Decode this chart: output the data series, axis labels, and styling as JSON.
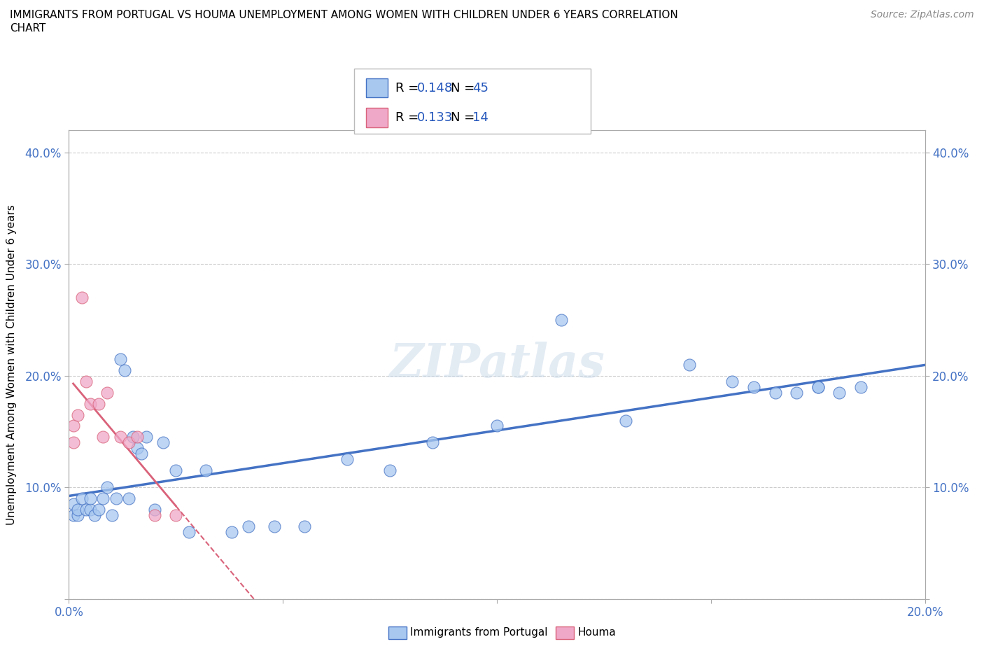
{
  "title_line1": "IMMIGRANTS FROM PORTUGAL VS HOUMA UNEMPLOYMENT AMONG WOMEN WITH CHILDREN UNDER 6 YEARS CORRELATION",
  "title_line2": "CHART",
  "source": "Source: ZipAtlas.com",
  "ylabel": "Unemployment Among Women with Children Under 6 years",
  "xlim": [
    0.0,
    0.2
  ],
  "ylim": [
    0.0,
    0.42
  ],
  "xticks": [
    0.0,
    0.05,
    0.1,
    0.15,
    0.2
  ],
  "yticks": [
    0.0,
    0.1,
    0.2,
    0.3,
    0.4
  ],
  "xtick_labels": [
    "0.0%",
    "",
    "",
    "",
    "20.0%"
  ],
  "ytick_labels": [
    "",
    "10.0%",
    "20.0%",
    "30.0%",
    "40.0%"
  ],
  "blue_color": "#a8c8f0",
  "pink_color": "#f0a8c8",
  "blue_line_color": "#4472c4",
  "pink_line_color": "#d9627a",
  "tick_color": "#4472c4",
  "watermark": "ZIPatlas",
  "blue_scatter_x": [
    0.001,
    0.001,
    0.002,
    0.002,
    0.003,
    0.004,
    0.005,
    0.005,
    0.006,
    0.007,
    0.008,
    0.009,
    0.01,
    0.011,
    0.012,
    0.013,
    0.014,
    0.015,
    0.016,
    0.017,
    0.018,
    0.02,
    0.022,
    0.025,
    0.028,
    0.032,
    0.038,
    0.042,
    0.048,
    0.055,
    0.065,
    0.075,
    0.085,
    0.1,
    0.115,
    0.13,
    0.145,
    0.155,
    0.16,
    0.165,
    0.17,
    0.175,
    0.175,
    0.18,
    0.185
  ],
  "blue_scatter_y": [
    0.075,
    0.085,
    0.075,
    0.08,
    0.09,
    0.08,
    0.08,
    0.09,
    0.075,
    0.08,
    0.09,
    0.1,
    0.075,
    0.09,
    0.215,
    0.205,
    0.09,
    0.145,
    0.135,
    0.13,
    0.145,
    0.08,
    0.14,
    0.115,
    0.06,
    0.115,
    0.06,
    0.065,
    0.065,
    0.065,
    0.125,
    0.115,
    0.14,
    0.155,
    0.25,
    0.16,
    0.21,
    0.195,
    0.19,
    0.185,
    0.185,
    0.19,
    0.19,
    0.185,
    0.19
  ],
  "pink_scatter_x": [
    0.001,
    0.001,
    0.002,
    0.003,
    0.004,
    0.005,
    0.007,
    0.008,
    0.009,
    0.012,
    0.014,
    0.016,
    0.02,
    0.025
  ],
  "pink_scatter_y": [
    0.14,
    0.155,
    0.165,
    0.27,
    0.195,
    0.175,
    0.175,
    0.145,
    0.185,
    0.145,
    0.14,
    0.145,
    0.075,
    0.075
  ],
  "legend_box_entries": [
    {
      "color": "#a8c8f0",
      "edge": "#4472c4",
      "R": "0.148",
      "N": "45"
    },
    {
      "color": "#f0a8c8",
      "edge": "#d9627a",
      "R": "0.133",
      "N": "14"
    }
  ],
  "bottom_legend": [
    "Immigrants from Portugal",
    "Houma"
  ]
}
